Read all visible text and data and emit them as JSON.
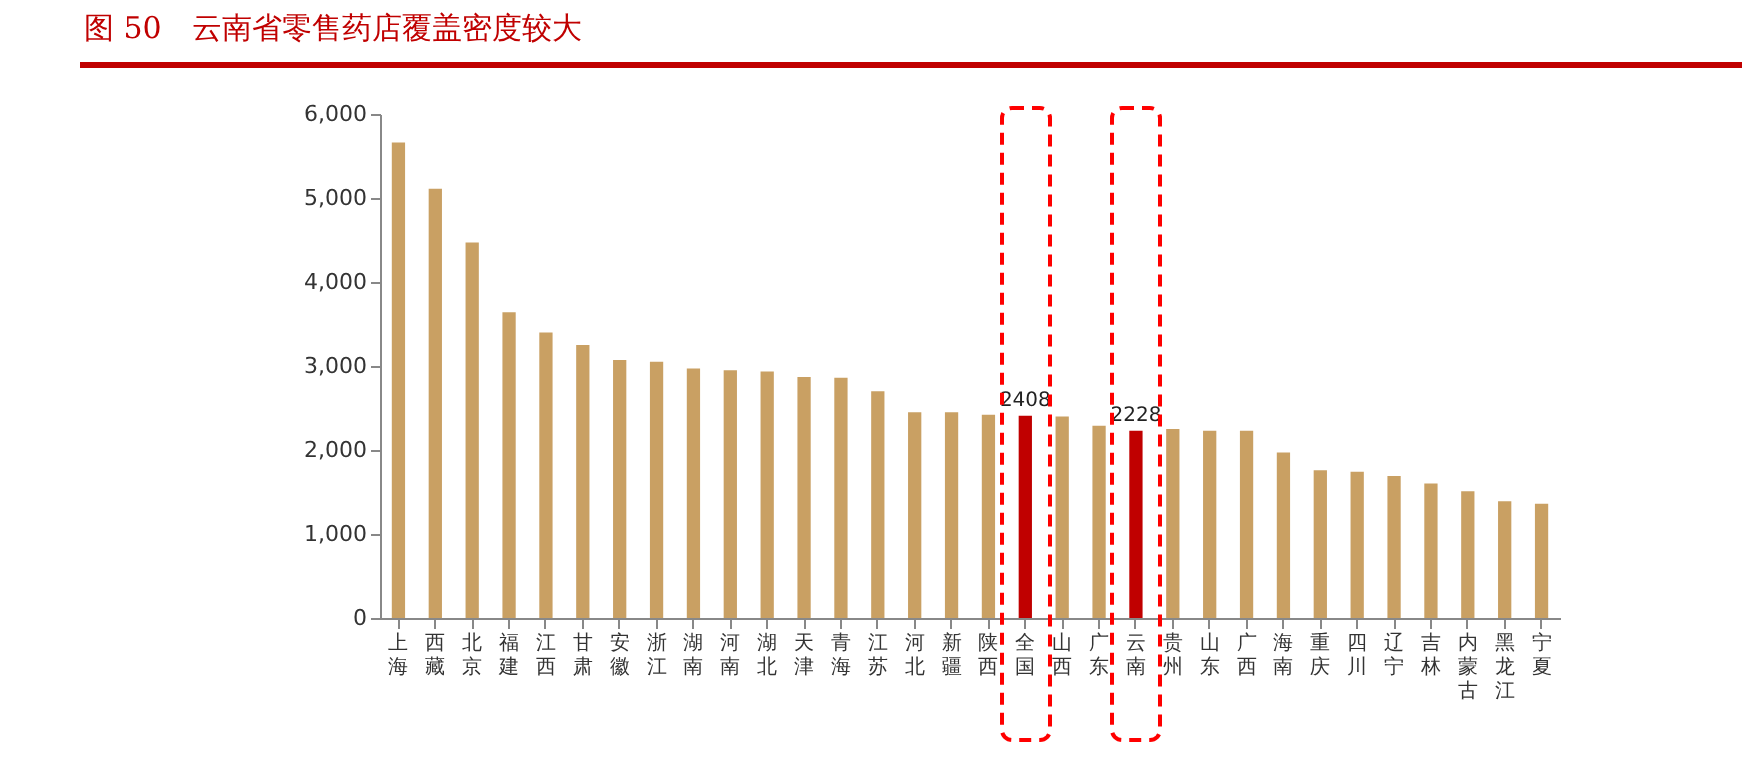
{
  "chart_data": {
    "type": "bar",
    "title": "图 50　云南省零售药店覆盖密度较大",
    "categories": [
      "上海",
      "西藏",
      "北京",
      "福建",
      "江西",
      "甘肃",
      "安徽",
      "浙江",
      "湖南",
      "河南",
      "湖北",
      "天津",
      "青海",
      "江苏",
      "河北",
      "新疆",
      "陕西",
      "全国",
      "山西",
      "广东",
      "云南",
      "贵州",
      "山东",
      "广西",
      "海南",
      "重庆",
      "四川",
      "辽宁",
      "吉林",
      "内蒙古",
      "黑龙江",
      "宁夏"
    ],
    "values": [
      5660,
      5110,
      4470,
      3640,
      3400,
      3250,
      3070,
      3050,
      2970,
      2950,
      2935,
      2870,
      2860,
      2700,
      2450,
      2450,
      2420,
      2408,
      2400,
      2290,
      2228,
      2250,
      2230,
      2230,
      1970,
      1760,
      1740,
      1690,
      1600,
      1510,
      1390,
      1360
    ],
    "colors": [
      "#c9a063",
      "#c9a063",
      "#c9a063",
      "#c9a063",
      "#c9a063",
      "#c9a063",
      "#c9a063",
      "#c9a063",
      "#c9a063",
      "#c9a063",
      "#c9a063",
      "#c9a063",
      "#c9a063",
      "#c9a063",
      "#c9a063",
      "#c9a063",
      "#c9a063",
      "#c00000",
      "#c9a063",
      "#c9a063",
      "#c00000",
      "#c9a063",
      "#c9a063",
      "#c9a063",
      "#c9a063",
      "#c9a063",
      "#c9a063",
      "#c9a063",
      "#c9a063",
      "#c9a063",
      "#c9a063",
      "#c9a063"
    ],
    "value_labels": [
      null,
      null,
      null,
      null,
      null,
      null,
      null,
      null,
      null,
      null,
      null,
      null,
      null,
      null,
      null,
      null,
      null,
      "2408",
      null,
      null,
      "2228",
      null,
      null,
      null,
      null,
      null,
      null,
      null,
      null,
      null,
      null,
      null
    ],
    "ylim": [
      0,
      6000
    ],
    "yticks": [
      0,
      {
        "value": 1000,
        "label": "1,000"
      },
      {
        "value": 2000,
        "label": "2,000"
      },
      {
        "value": 3000,
        "label": "3,000"
      },
      {
        "value": 4000,
        "label": "4,000"
      },
      {
        "value": 5000,
        "label": "5,000"
      },
      {
        "value": 6000,
        "label": "6,000"
      }
    ],
    "grid": false
  }
}
